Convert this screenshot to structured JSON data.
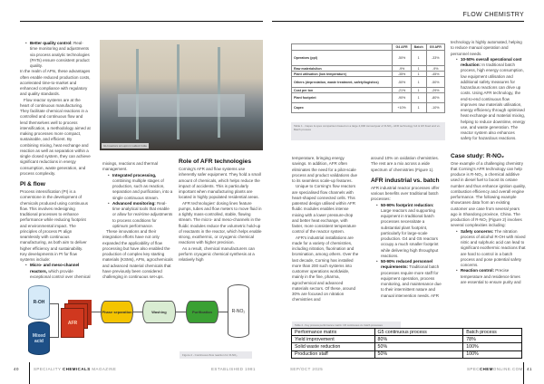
{
  "header": {
    "section": "FLOW CHEMISTRY"
  },
  "photo": {
    "caption": "GH reactors at Lupin in Lalkoti India"
  },
  "left_page": {
    "col1": {
      "bullet1_bold": "Better quality control:",
      "bullet1": " Real-time monitoring and adjustments via process analytic technologies (PATs) ensure consistent product quality.",
      "p1": "In the realm of APIs, these advantages often enable reduced production costs, accelerated time-to-market and enhanced compliance with regulatory and quality standards.",
      "p2": "Flow reactor systems are at the heart of continuous manufacturing. They facilitate chemical reactions in a controlled and continuous flow and lend themselves well to process intensification, a methodology aimed at making processes more compact, sustainable, and efficient. By combining mixing, heat exchange and reaction as well as separation within a single closed system, they can achieve significant reductions in energy consumption, waste generation, and process complexity.",
      "heading": "PI & flow",
      "p3": "Process intensification (PI) is a cornerstone in the development of chemicals produced using continuous flow. This involves redesigning traditional processes to enhance performance while reducing footprint and environmental impact. The principles of process PI align seamlessly with continuous manufacturing, as both aim to deliver higher efficiency and sustainability. Key developments in PI for flow systems include:",
      "bullet2_bold": "Micro- and meso-channel reactors,",
      "bullet2": " which provide exceptional control over chemical"
    },
    "col2": {
      "p1": "mixings, reactions and thermal management.",
      "bullet1_bold": "Integrated processing,",
      "bullet1": " combining multiple stages of production, such as reaction, separation and purification, into a single continuous stream.",
      "bullet2_bold": "Advanced monitoring:",
      "bullet2": " Real-time analytical tools that enable or allow for real-time adjustments to process conditions for optimum performance.",
      "p2": "These innovations and their integration efforts have not only expanded the applicability of flow processing but have also enabled the production of complex key starting materials (KSMs), APIs, agrochemicals and advanced material chemicals that have previously been considered challenging in continuous set-ups."
    },
    "col3": {
      "heading": "Role of AFR technologies",
      "p1": "Corning's AFR and flow systems use inherently safer equipment. They hold a small amount of chemicals, which helps reduce the impact of accidents. This is particularly important when manufacturing plants are located in highly populated residential areas.",
      "p2": "AFR technologies' dosing lines feature pumps, tubes and flow meters to move fluid in a tightly mass-controlled, stable, flowing stream. The micro- and meso-channels in the fluidic modules reduce the volumetric hold-up of reactants in the reactor, which helps enable strong, exothermic, or cryogenic chemical reactions with higher precision.",
      "p3": "As a result, chemical manufacturers can perform cryogenic chemical synthesis at a relatively high"
    }
  },
  "figure": {
    "nodes": {
      "roh": "R-OH",
      "acid": "Mixed acid",
      "afr": "AFR",
      "phase": "Phase separation",
      "wash": "Washing",
      "purif": "Purification",
      "product": "R-NO₂"
    },
    "caption": "Figure 2 - Continuous flow reaction for R-NO₂",
    "colors": {
      "roh": "#d6eaf8",
      "acid": "#1d4f86",
      "afr": "#d0381f",
      "phase": "#f4c400",
      "wash": "#d9ecd2",
      "purif": "#3aa033"
    }
  },
  "table1": {
    "headers": [
      "",
      "G4 AFR",
      "Batch",
      "G5 AFR"
    ],
    "rows": [
      [
        "Operators (ppl)",
        "-50%",
        "1",
        "-33%"
      ],
      [
        "Raw materials/ton",
        "-9%",
        "1",
        "-9%"
      ],
      [
        "Plant utilisation (low temperature)",
        "-35%",
        "1",
        "-45%"
      ],
      [
        "Others (depreciation, waste treatment, safety/logistics)",
        "-50%",
        "1",
        "-50%"
      ],
      [
        "Cost per ton",
        "-21%",
        "1",
        "-29%"
      ],
      [
        "Plant footprint",
        "-90%",
        "1",
        "-80%"
      ],
      [
        "Capex",
        "+10%",
        "1",
        "-10%"
      ]
    ],
    "caption": "Table 1 - Capex & opex comparison based on a large 4,000 tonnes/year of R-NO₂. AFR technology G4 & G5 fixed and vs. Batch process"
  },
  "right_page": {
    "colA": {
      "p1": "temperature, bringing energy savings. In addition, AFR often eliminates the need for a pilot-scale process and product validations due to its seamless scale-up features.",
      "p2": "Unique to Corning's flow reactors are specialised flow channels with heart-shaped connected cells. This patented design utilised within AFR fluidic modules enables intense mixing with a lower pressure-drop and better heat exchange, with faster, more consistent temperature control of the reactor system.",
      "p3": "AFR's industrial installations are made for a variety of chemistries, including nitration, fluorination and bromination, among others. Over the last decade, Corning has installed more than 200 such systems into customer operations worldwide, mainly in the fine, pharma, agrochemical and advanced materials sectors. Of these, around 30% are focused on nitration chemistries and"
    },
    "colB": {
      "p1": "around 10% on oxidation chemistries. The rest are a mix across a wide spectrum of chemistries (Figure 1).",
      "heading": "AFR industrial vs. batch",
      "p2": "AFR industrial reactor processes offer various benefits over traditional batch processes:",
      "bullet1_bold": "50-90% footprint reduction:",
      "bullet1": " Large reactors and supporting equipment in traditional batch processes necessitate a substantial plant footprint, particularly for large-scale production. G4 and G5 reactors occupy a much smaller footprint while delivering high throughput reactions.",
      "bullet2_bold": "50-90% reduced personnel requirements:",
      "bullet2": " Traditional batch processes require more staff for equipment operation, process monitoring, and maintenance due to their intermittent nature and manual intervention needs. AFR"
    },
    "colC": {
      "p1": "technology is highly automated, helping to reduce manual operation and personnel needs.",
      "bullet1_bold": "10-50% overall operational cost reduction:",
      "bullet1": " In traditional batch process, high energy consumption, low equipment utilisation and additional safety measures for hazardous reactions can drive up costs. Using AFR technology, the end-to-end continuous flow improves raw materials utilisation, energy efficiency through optimised heat exchange and material mixing, helping to reduce downtime, energy use, and waste generation. The reactor system also enhances safety for hazardous reactions.",
      "heading": "Case study: R-NO₂",
      "p2": "One example of a challenging chemistry that Corning's AFR technology can help produce is R-NO₂, a chemical additive used in diesel fuel to boost its cetane number and thus enhance ignition quality, combustion efficiency and overall engine performance. The following example showcases data from an existing customer use case from several years ago in Shandong province, China. The production of R-NO₂ (Figure 2) involves several complexities including:",
      "bullet2_bold": "Safety concerns:",
      "bullet2": " The nitration process of alcohol R-OH with mixed nitric and sulphuric acid can lead to significant exothermic reactions that are hard to control in a batch process and pose potential safety concerns.",
      "bullet3_bold": "Reaction control:",
      "bullet3": " Precise temperature and residence times are essential to ensure purity and"
    }
  },
  "table2": {
    "caption": "Table 2 - Key process performance matrix: G5 continuous vs. batch processes",
    "rows": [
      [
        "Performance matrix",
        "G5 continuous process",
        "Batch process"
      ],
      [
        "Yield improvement",
        "80%",
        "78%"
      ],
      [
        "Solid waste reduction",
        "50%",
        "100%"
      ],
      [
        "Production staff",
        "50%",
        "100%"
      ]
    ]
  },
  "footer": {
    "page_left": "40",
    "mag_pre": "SPECIALITY ",
    "mag_bold": "CHEMICALS",
    "mag_post": " MAGAZINE",
    "established": "ESTABLISHED 1981",
    "issue": "SEP/OCT 2025",
    "site_pre": "SPEC",
    "site_bold": "CHEM",
    "site_post": "ONLINE.COM",
    "page_right": "41"
  }
}
